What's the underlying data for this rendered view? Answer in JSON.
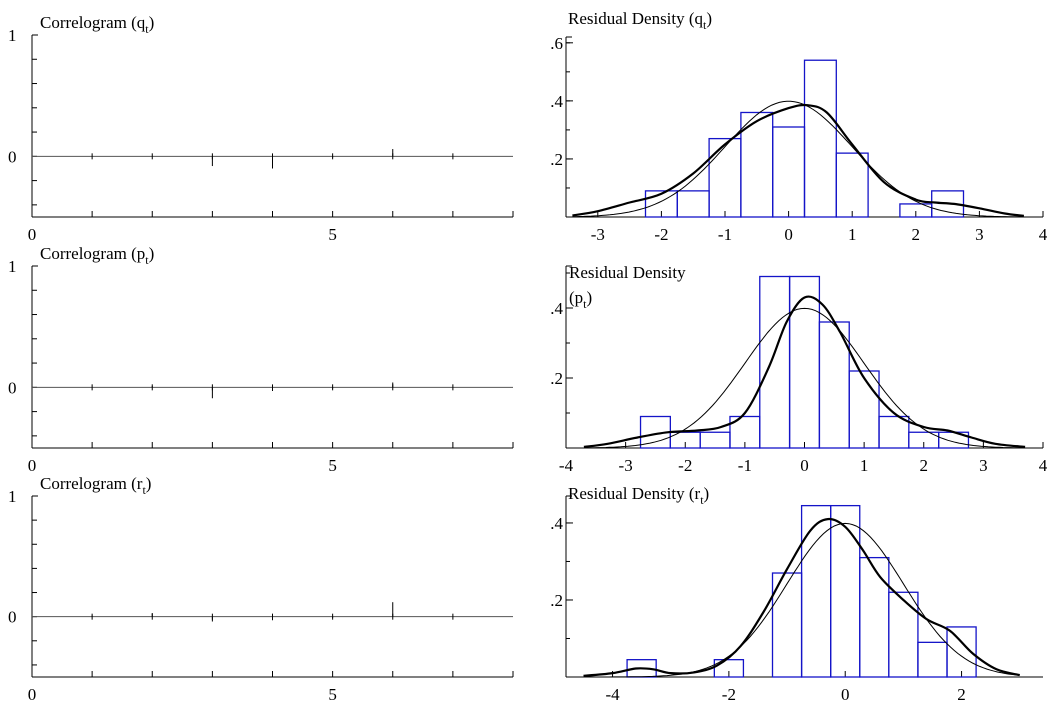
{
  "chart_data": [
    {
      "type": "bar",
      "title": "Correlogram (q",
      "title_sub": "t",
      "title_close": ")",
      "x_ticks": [
        "0",
        "5"
      ],
      "y_ticks": [
        "0",
        "1"
      ],
      "xlim": [
        0,
        8
      ],
      "ylim": [
        -0.5,
        1
      ],
      "lags": [
        1,
        2,
        3,
        4,
        5,
        6,
        7
      ],
      "values": [
        0.0,
        0.0,
        -0.08,
        -0.1,
        -0.01,
        0.06,
        0.0
      ]
    },
    {
      "type": "bar",
      "title": "Residual Density (q",
      "title_sub": "t",
      "title_close": ")",
      "x_ticks": [
        "-3",
        "-2",
        "-1",
        "0",
        "1",
        "2",
        "3",
        "4"
      ],
      "x_tick_values": [
        -3,
        -2,
        -1,
        0,
        1,
        2,
        3,
        4
      ],
      "y_ticks": [
        ".2",
        ".4",
        ".6"
      ],
      "y_tick_values": [
        0.2,
        0.4,
        0.6
      ],
      "xlim": [
        -3.5,
        4
      ],
      "ylim": [
        0,
        0.62
      ],
      "bin_width": 0.5,
      "bins": [
        {
          "x0": -2.25,
          "h": 0.09
        },
        {
          "x0": -1.75,
          "h": 0.09
        },
        {
          "x0": -1.25,
          "h": 0.27
        },
        {
          "x0": -0.75,
          "h": 0.36
        },
        {
          "x0": -0.25,
          "h": 0.31
        },
        {
          "x0": 0.25,
          "h": 0.54
        },
        {
          "x0": 0.75,
          "h": 0.22
        },
        {
          "x0": 1.75,
          "h": 0.045
        },
        {
          "x0": 2.25,
          "h": 0.09
        }
      ],
      "normal": {
        "mean": 0,
        "sd": 1
      },
      "density": {
        "x": [
          -3.4,
          -3.0,
          -2.5,
          -2.0,
          -1.5,
          -1.0,
          -0.5,
          0.0,
          0.3,
          0.6,
          1.0,
          1.5,
          2.0,
          2.3,
          2.6,
          3.0,
          3.4,
          3.7
        ],
        "y": [
          0.005,
          0.02,
          0.05,
          0.08,
          0.15,
          0.25,
          0.33,
          0.375,
          0.385,
          0.36,
          0.25,
          0.12,
          0.06,
          0.05,
          0.045,
          0.03,
          0.012,
          0.004
        ]
      }
    },
    {
      "type": "bar",
      "title": "Correlogram (p",
      "title_sub": "t",
      "title_close": ")",
      "x_ticks": [
        "0",
        "5"
      ],
      "y_ticks": [
        "0",
        "1"
      ],
      "xlim": [
        0,
        8
      ],
      "ylim": [
        -0.5,
        1
      ],
      "lags": [
        1,
        2,
        3,
        4,
        5,
        6,
        7
      ],
      "values": [
        0.0,
        0.01,
        -0.09,
        -0.03,
        -0.01,
        0.04,
        0.0
      ]
    },
    {
      "type": "bar",
      "title": "Residual Density",
      "title_line2": "(p",
      "title_sub": "t",
      "title_close": ")",
      "x_ticks": [
        "-4",
        "-3",
        "-2",
        "-1",
        "0",
        "1",
        "2",
        "3",
        "4"
      ],
      "x_tick_values": [
        -4,
        -3,
        -2,
        -1,
        0,
        1,
        2,
        3,
        4
      ],
      "y_ticks": [
        ".2",
        ".4"
      ],
      "y_tick_values": [
        0.2,
        0.4
      ],
      "xlim": [
        -4,
        4
      ],
      "ylim": [
        0,
        0.52
      ],
      "bin_width": 0.5,
      "bins": [
        {
          "x0": -2.75,
          "h": 0.09
        },
        {
          "x0": -2.25,
          "h": 0.045
        },
        {
          "x0": -1.75,
          "h": 0.045
        },
        {
          "x0": -1.25,
          "h": 0.09
        },
        {
          "x0": -0.75,
          "h": 0.49
        },
        {
          "x0": -0.25,
          "h": 0.49
        },
        {
          "x0": 0.25,
          "h": 0.36
        },
        {
          "x0": 0.75,
          "h": 0.22
        },
        {
          "x0": 1.25,
          "h": 0.09
        },
        {
          "x0": 1.75,
          "h": 0.045
        },
        {
          "x0": 2.25,
          "h": 0.045
        }
      ],
      "normal": {
        "mean": 0,
        "sd": 1
      },
      "density": {
        "x": [
          -3.7,
          -3.3,
          -2.8,
          -2.3,
          -1.8,
          -1.4,
          -1.0,
          -0.6,
          -0.3,
          0.0,
          0.3,
          0.6,
          1.0,
          1.5,
          2.0,
          2.4,
          2.8,
          3.2,
          3.7
        ],
        "y": [
          0.003,
          0.012,
          0.03,
          0.045,
          0.05,
          0.06,
          0.1,
          0.23,
          0.36,
          0.43,
          0.41,
          0.33,
          0.2,
          0.1,
          0.06,
          0.05,
          0.03,
          0.012,
          0.003
        ]
      }
    },
    {
      "type": "bar",
      "title": "Correlogram (r",
      "title_sub": "t",
      "title_close": ")",
      "x_ticks": [
        "0",
        "5"
      ],
      "y_ticks": [
        "0",
        "1"
      ],
      "xlim": [
        0,
        8
      ],
      "ylim": [
        -0.5,
        1
      ],
      "lags": [
        1,
        2,
        3,
        4,
        5,
        6,
        7
      ],
      "values": [
        0.01,
        0.03,
        -0.04,
        -0.03,
        -0.01,
        0.12,
        0.0
      ]
    },
    {
      "type": "bar",
      "title": "Residual Density (r",
      "title_sub": "t",
      "title_close": ")",
      "x_ticks": [
        "-4",
        "-2",
        "0",
        "2"
      ],
      "x_tick_values": [
        -4,
        -2,
        0,
        2
      ],
      "y_ticks": [
        ".2",
        ".4"
      ],
      "y_tick_values": [
        0.2,
        0.4
      ],
      "xlim": [
        -4.8,
        3.4
      ],
      "ylim": [
        0,
        0.47
      ],
      "bin_width": 0.5,
      "bins": [
        {
          "x0": -3.75,
          "h": 0.045
        },
        {
          "x0": -2.25,
          "h": 0.045
        },
        {
          "x0": -1.25,
          "h": 0.27
        },
        {
          "x0": -0.75,
          "h": 0.445
        },
        {
          "x0": -0.25,
          "h": 0.445
        },
        {
          "x0": 0.25,
          "h": 0.31
        },
        {
          "x0": 0.75,
          "h": 0.22
        },
        {
          "x0": 1.25,
          "h": 0.09
        },
        {
          "x0": 1.75,
          "h": 0.13
        }
      ],
      "normal": {
        "mean": 0,
        "sd": 1
      },
      "density": {
        "x": [
          -4.5,
          -4.0,
          -3.6,
          -3.3,
          -3.0,
          -2.6,
          -2.2,
          -1.8,
          -1.4,
          -1.0,
          -0.6,
          -0.3,
          0.0,
          0.3,
          0.6,
          1.0,
          1.4,
          1.8,
          2.2,
          2.6,
          3.0
        ],
        "y": [
          0.003,
          0.01,
          0.022,
          0.02,
          0.01,
          0.012,
          0.03,
          0.08,
          0.17,
          0.28,
          0.38,
          0.41,
          0.39,
          0.33,
          0.26,
          0.2,
          0.15,
          0.12,
          0.06,
          0.02,
          0.005
        ]
      }
    }
  ]
}
